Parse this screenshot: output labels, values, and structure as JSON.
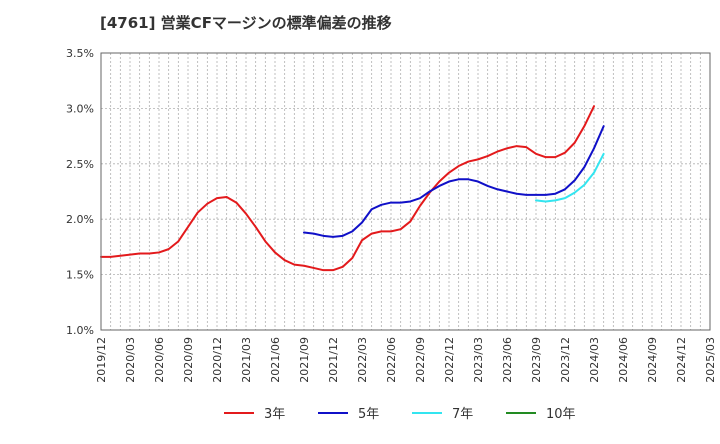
{
  "chart_data": {
    "type": "line",
    "title": "[4761]  営業CFマージンの標準偏差の推移",
    "xlabel": "",
    "ylabel": "",
    "y_ticks": [
      "1.0%",
      "1.5%",
      "2.0%",
      "2.5%",
      "3.0%",
      "3.5%"
    ],
    "ylim": [
      1.0,
      3.5
    ],
    "x_ticks": [
      "2019/12",
      "2020/03",
      "2020/06",
      "2020/09",
      "2020/12",
      "2021/03",
      "2021/06",
      "2021/09",
      "2021/12",
      "2022/03",
      "2022/06",
      "2022/09",
      "2022/12",
      "2023/03",
      "2023/06",
      "2023/09",
      "2023/12",
      "2024/03",
      "2024/06",
      "2024/09",
      "2024/12",
      "2025/03"
    ],
    "x_range": [
      "2019/12",
      "2025/03"
    ],
    "grid": true,
    "legend_position": "bottom",
    "series": [
      {
        "name": "3年",
        "color": "#e31a1c",
        "points": [
          [
            "2019/12",
            1.66
          ],
          [
            "2020/01",
            1.66
          ],
          [
            "2020/02",
            1.67
          ],
          [
            "2020/03",
            1.68
          ],
          [
            "2020/04",
            1.69
          ],
          [
            "2020/05",
            1.69
          ],
          [
            "2020/06",
            1.7
          ],
          [
            "2020/07",
            1.73
          ],
          [
            "2020/08",
            1.8
          ],
          [
            "2020/09",
            1.93
          ],
          [
            "2020/10",
            2.06
          ],
          [
            "2020/11",
            2.14
          ],
          [
            "2020/12",
            2.19
          ],
          [
            "2021/01",
            2.2
          ],
          [
            "2021/02",
            2.15
          ],
          [
            "2021/03",
            2.05
          ],
          [
            "2021/04",
            1.93
          ],
          [
            "2021/05",
            1.8
          ],
          [
            "2021/06",
            1.7
          ],
          [
            "2021/07",
            1.63
          ],
          [
            "2021/08",
            1.59
          ],
          [
            "2021/09",
            1.58
          ],
          [
            "2021/10",
            1.56
          ],
          [
            "2021/11",
            1.54
          ],
          [
            "2021/12",
            1.54
          ],
          [
            "2022/01",
            1.57
          ],
          [
            "2022/02",
            1.65
          ],
          [
            "2022/03",
            1.81
          ],
          [
            "2022/04",
            1.87
          ],
          [
            "2022/05",
            1.89
          ],
          [
            "2022/06",
            1.89
          ],
          [
            "2022/07",
            1.91
          ],
          [
            "2022/08",
            1.98
          ],
          [
            "2022/09",
            2.12
          ],
          [
            "2022/10",
            2.24
          ],
          [
            "2022/11",
            2.34
          ],
          [
            "2022/12",
            2.42
          ],
          [
            "2023/01",
            2.48
          ],
          [
            "2023/02",
            2.52
          ],
          [
            "2023/03",
            2.54
          ],
          [
            "2023/04",
            2.57
          ],
          [
            "2023/05",
            2.61
          ],
          [
            "2023/06",
            2.64
          ],
          [
            "2023/07",
            2.66
          ],
          [
            "2023/08",
            2.65
          ],
          [
            "2023/09",
            2.59
          ],
          [
            "2023/10",
            2.56
          ],
          [
            "2023/11",
            2.56
          ],
          [
            "2023/12",
            2.6
          ],
          [
            "2024/01",
            2.69
          ],
          [
            "2024/02",
            2.84
          ],
          [
            "2024/03",
            3.02
          ]
        ]
      },
      {
        "name": "5年",
        "color": "#1010c8",
        "points": [
          [
            "2021/09",
            1.88
          ],
          [
            "2021/10",
            1.87
          ],
          [
            "2021/11",
            1.85
          ],
          [
            "2021/12",
            1.84
          ],
          [
            "2022/01",
            1.85
          ],
          [
            "2022/02",
            1.89
          ],
          [
            "2022/03",
            1.97
          ],
          [
            "2022/04",
            2.09
          ],
          [
            "2022/05",
            2.13
          ],
          [
            "2022/06",
            2.15
          ],
          [
            "2022/07",
            2.15
          ],
          [
            "2022/08",
            2.16
          ],
          [
            "2022/09",
            2.19
          ],
          [
            "2022/10",
            2.25
          ],
          [
            "2022/11",
            2.3
          ],
          [
            "2022/12",
            2.34
          ],
          [
            "2023/01",
            2.36
          ],
          [
            "2023/02",
            2.36
          ],
          [
            "2023/03",
            2.34
          ],
          [
            "2023/04",
            2.3
          ],
          [
            "2023/05",
            2.27
          ],
          [
            "2023/06",
            2.25
          ],
          [
            "2023/07",
            2.23
          ],
          [
            "2023/08",
            2.22
          ],
          [
            "2023/09",
            2.22
          ],
          [
            "2023/10",
            2.22
          ],
          [
            "2023/11",
            2.23
          ],
          [
            "2023/12",
            2.27
          ],
          [
            "2024/01",
            2.35
          ],
          [
            "2024/02",
            2.47
          ],
          [
            "2024/03",
            2.64
          ],
          [
            "2024/04",
            2.84
          ]
        ]
      },
      {
        "name": "7年",
        "color": "#33e5f0",
        "points": [
          [
            "2023/09",
            2.17
          ],
          [
            "2023/10",
            2.16
          ],
          [
            "2023/11",
            2.17
          ],
          [
            "2023/12",
            2.19
          ],
          [
            "2024/01",
            2.24
          ],
          [
            "2024/02",
            2.31
          ],
          [
            "2024/03",
            2.42
          ],
          [
            "2024/04",
            2.59
          ]
        ]
      },
      {
        "name": "10年",
        "color": "#228b22",
        "points": []
      }
    ]
  }
}
